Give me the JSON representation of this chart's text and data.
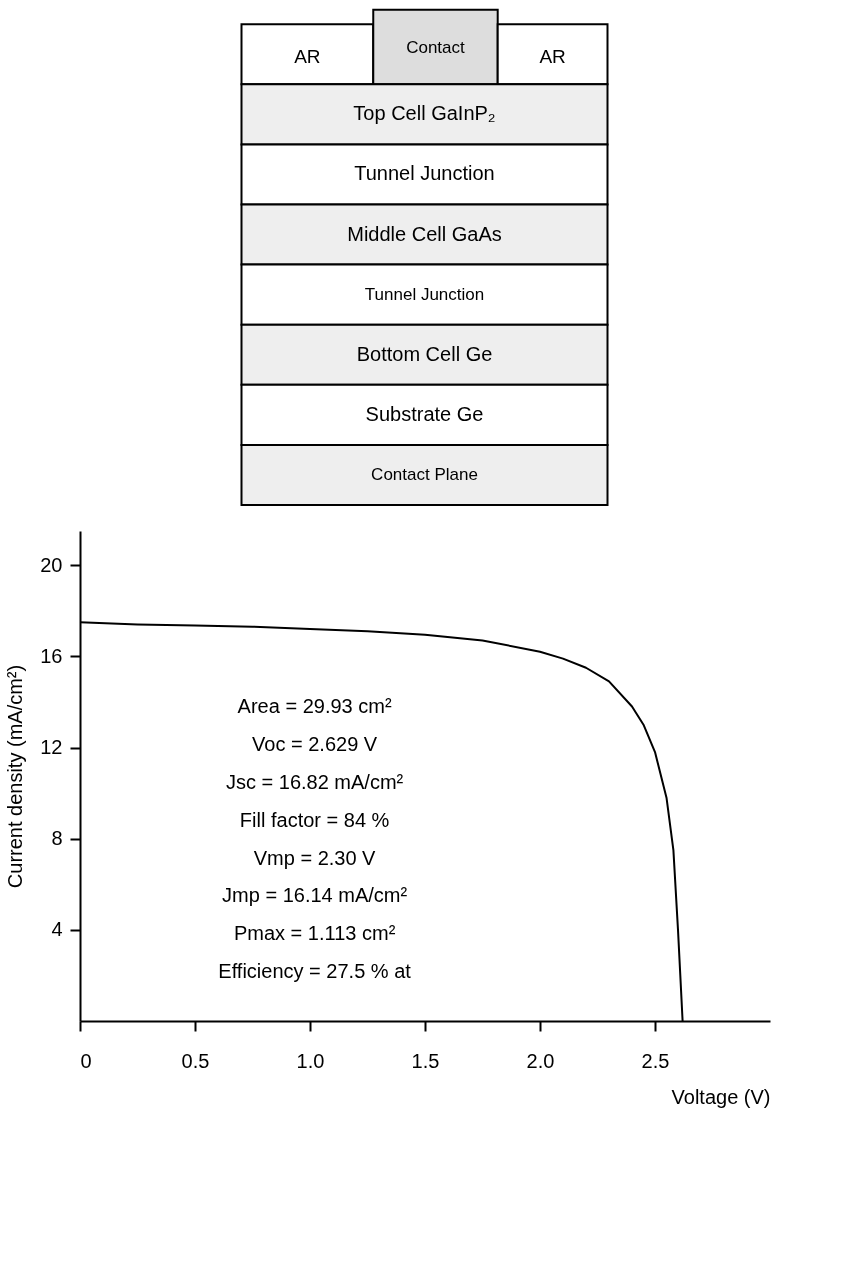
{
  "chart_data": [
    {
      "type": "other",
      "annotations": [
        "AR",
        "Contact",
        "AR",
        "Top Cell GaInP₂",
        "Tunnel Junction",
        "Middle Cell GaAs",
        "Tunnel Junction",
        "Bottom Cell Ge",
        "Substrate Ge",
        "Contact Plane"
      ]
    },
    {
      "type": "line",
      "xlabel": "Voltage (V)",
      "ylabel": "Current density (mA/cm²)",
      "x": [
        0,
        0.25,
        0.5,
        0.75,
        1.0,
        1.25,
        1.5,
        1.75,
        2.0,
        2.1,
        2.2,
        2.3,
        2.4,
        2.45,
        2.5,
        2.55,
        2.58,
        2.6,
        2.61,
        2.62
      ],
      "series": [
        {
          "color": "#000000",
          "values": [
            17.5,
            17.4,
            17.35,
            17.3,
            17.2,
            17.1,
            16.95,
            16.7,
            16.2,
            15.9,
            15.5,
            14.9,
            13.8,
            13.0,
            11.8,
            9.8,
            7.5,
            4.0,
            2.0,
            0
          ]
        }
      ],
      "xlim": [
        0,
        3.0
      ],
      "ylim": [
        0,
        21.5
      ],
      "xticks": [
        0,
        0.5,
        {
          "value": 1,
          "label": "1.0"
        },
        1.5,
        {
          "value": 2,
          "label": "2.0"
        },
        2.5
      ],
      "yticks": [
        4,
        8,
        12,
        16,
        20
      ],
      "grid": false,
      "marker": "none",
      "line_style": "solid",
      "annotations": [
        "Area = 29.93 cm²",
        "Voc = 2.629 V",
        "Jsc = 16.82 mA/cm²",
        "Fill factor = 84 %",
        "Vmp = 2.30 V",
        "Jmp = 16.14 mA/cm²",
        "Pmax = 1.113 cm²",
        "Efficiency = 27.5 % at"
      ]
    }
  ]
}
